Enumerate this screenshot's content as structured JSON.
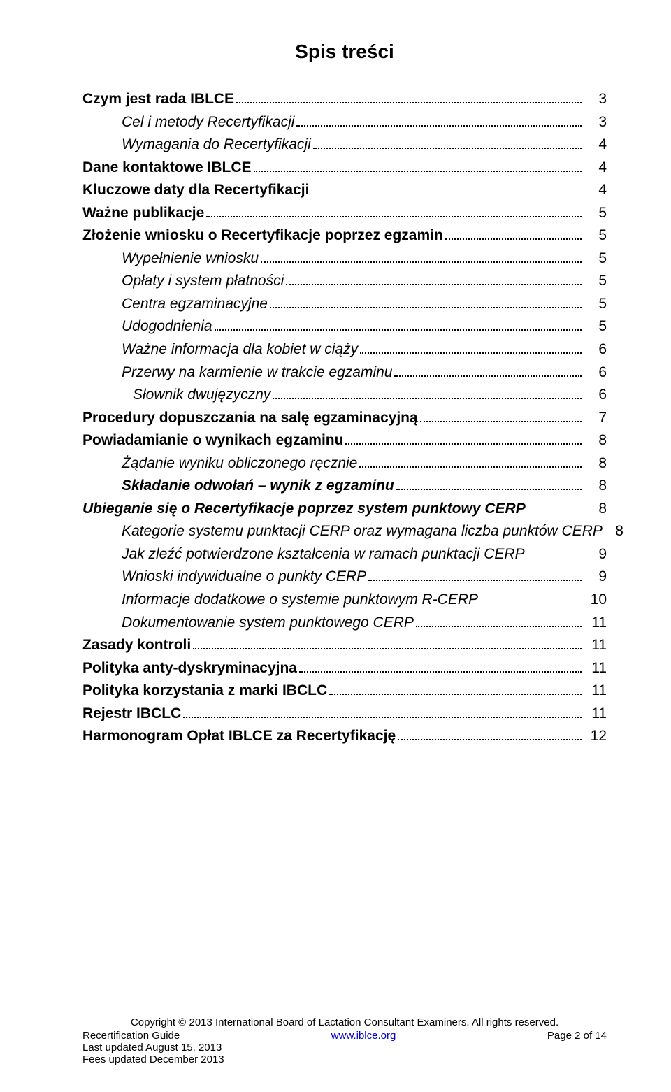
{
  "title": "Spis treści",
  "toc": [
    {
      "label": "Czym jest rada IBLCE",
      "page": "3",
      "style": "bold",
      "indent": 0,
      "leader": "dots"
    },
    {
      "label": "Cel i metody Recertyfikacji",
      "page": "3",
      "style": "italic",
      "indent": 1,
      "leader": "dots"
    },
    {
      "label": "Wymagania do Recertyfikacji",
      "page": "4",
      "style": "italic",
      "indent": 1,
      "leader": "dots"
    },
    {
      "label": "Dane kontaktowe IBLCE",
      "page": "4",
      "style": "bold",
      "indent": 0,
      "leader": "dots"
    },
    {
      "label": "Kluczowe daty dla Recertyfikacji",
      "page": "4",
      "style": "bold",
      "indent": 0,
      "leader": "none"
    },
    {
      "label": "Ważne publikacje",
      "page": "5",
      "style": "bold",
      "indent": 0,
      "leader": "dots"
    },
    {
      "label": "Złożenie wniosku o Recertyfikacje poprzez egzamin",
      "page": "5",
      "style": "bold",
      "indent": 0,
      "leader": "dots"
    },
    {
      "label": "Wypełnienie wniosku",
      "page": "5",
      "style": "italic",
      "indent": 1,
      "leader": "dots"
    },
    {
      "label": "Opłaty i system płatności",
      "page": "5",
      "style": "italic",
      "indent": 1,
      "leader": "dots"
    },
    {
      "label": "Centra egzaminacyjne",
      "page": "5",
      "style": "italic",
      "indent": 1,
      "leader": "dots"
    },
    {
      "label": "Udogodnienia",
      "page": "5",
      "style": "italic",
      "indent": 1,
      "leader": "dots"
    },
    {
      "label": "Ważne informacja dla kobiet w ciąży",
      "page": "6",
      "style": "italic",
      "indent": 1,
      "leader": "dots"
    },
    {
      "label": "Przerwy na karmienie w trakcie egzaminu",
      "page": "6",
      "style": "italic",
      "indent": 1,
      "leader": "dots"
    },
    {
      "label": "Słownik dwujęzyczny",
      "page": "6",
      "style": "italic",
      "indent": 2,
      "leader": "dots"
    },
    {
      "label": "Procedury dopuszczania na salę egzaminacyjną",
      "page": "7",
      "style": "bold",
      "indent": 0,
      "leader": "dots"
    },
    {
      "label": "Powiadamianie o wynikach egzaminu",
      "page": "8",
      "style": "bold",
      "indent": 0,
      "leader": "dots"
    },
    {
      "label": "Żądanie wyniku obliczonego ręcznie",
      "page": "8",
      "style": "italic",
      "indent": 1,
      "leader": "dots"
    },
    {
      "label": "Składanie odwołań – wynik z egzaminu",
      "page": "8",
      "style": "bolditalic",
      "indent": 1,
      "leader": "dots"
    },
    {
      "label": "Ubieganie się o Recertyfikacje poprzez system punktowy CERP",
      "page": "8",
      "style": "bolditalic",
      "indent": 0,
      "leader": "none"
    },
    {
      "label": "Kategorie systemu punktacji CERP oraz wymagana liczba punktów CERP",
      "page": "8",
      "style": "italic",
      "indent": 1,
      "leader": "none"
    },
    {
      "label": "Jak zleźć potwierdzone kształcenia w ramach punktacji CERP",
      "page": "9",
      "style": "italic",
      "indent": 1,
      "leader": "none"
    },
    {
      "label": "Wnioski indywidualne o punkty CERP",
      "page": "9",
      "style": "italic",
      "indent": 1,
      "leader": "dots"
    },
    {
      "label": "Informacje dodatkowe o systemie punktowym R-CERP",
      "page": "10",
      "style": "italic",
      "indent": 1,
      "leader": "none"
    },
    {
      "label": "Dokumentowanie system punktowego CERP",
      "page": "11",
      "style": "italic",
      "indent": 1,
      "leader": "dots"
    },
    {
      "label": "Zasady kontroli",
      "page": "11",
      "style": "bold",
      "indent": 0,
      "leader": "dots"
    },
    {
      "label": "Polityka anty-dyskryminacyjna",
      "page": "11",
      "style": "bold",
      "indent": 0,
      "leader": "dots"
    },
    {
      "label": "Polityka korzystania z marki IBCLC",
      "page": "11",
      "style": "bold",
      "indent": 0,
      "leader": "dots"
    },
    {
      "label": "Rejestr IBCLC",
      "page": "11",
      "style": "bold",
      "indent": 0,
      "leader": "dots"
    },
    {
      "label": "Harmonogram Opłat IBLCE za Recertyfikację",
      "page": "12",
      "style": "bold",
      "indent": 0,
      "leader": "dots"
    }
  ],
  "footer": {
    "copyright": "Copyright © 2013 International Board of Lactation Consultant Examiners. All rights reserved.",
    "left1": "Recertification Guide",
    "left2": "Last updated August 15, 2013",
    "left3": "Fees updated December 2013",
    "center_link": "www.iblce.org",
    "right": "Page 2 of 14"
  }
}
